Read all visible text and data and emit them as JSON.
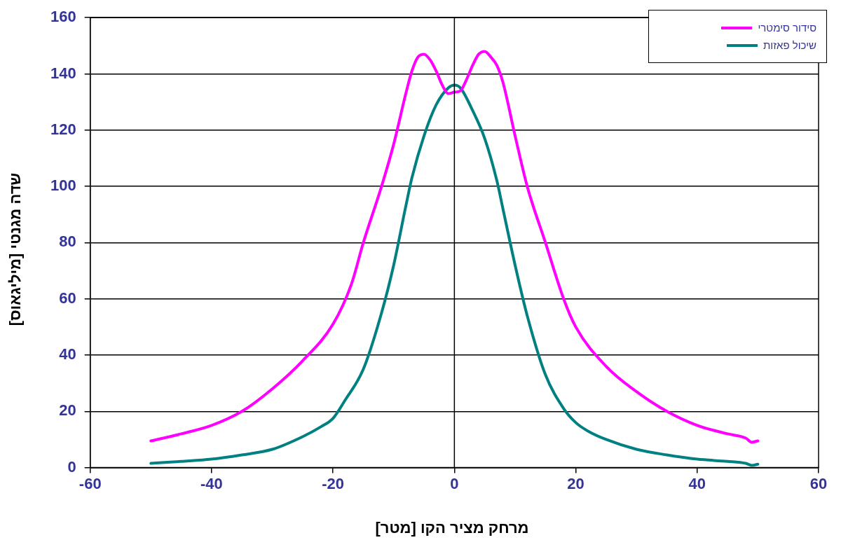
{
  "chart_data": {
    "type": "line",
    "xlabel": "מרחק מציר הקו [מטר]",
    "ylabel": "שדה מגנטי [מיליגאוס]",
    "xlim": [
      -60,
      60
    ],
    "xticks": [
      -60,
      -40,
      -20,
      0,
      20,
      40,
      60
    ],
    "ylim": [
      0,
      160
    ],
    "yticks": [
      0,
      20,
      40,
      60,
      80,
      100,
      120,
      140,
      160
    ],
    "grid": "y",
    "legend": "top right",
    "marker": "none",
    "line_style": "solid",
    "ref_lines": [
      {
        "axis": "x",
        "value": 0,
        "color": "#000000"
      }
    ],
    "series": [
      {
        "name": "סידור סימטרי",
        "color": "#ff00ff",
        "x": [
          -50,
          -45,
          -40,
          -35,
          -30,
          -25,
          -20,
          -17,
          -15,
          -12,
          -10,
          -8,
          -7,
          -6,
          -5,
          -4,
          -3,
          -2,
          -1,
          0,
          1,
          2,
          3,
          4,
          5,
          6,
          7,
          8,
          10,
          12,
          15,
          18,
          20,
          25,
          30,
          35,
          40,
          45,
          48,
          49,
          50
        ],
        "values": [
          9.5,
          12,
          15,
          20,
          28,
          38,
          51,
          65,
          80,
          100,
          115,
          133,
          141,
          146,
          147,
          145,
          141,
          136,
          133,
          133.5,
          134,
          138,
          143,
          147,
          148,
          146,
          143,
          137,
          118,
          100,
          80,
          60,
          50,
          36,
          27,
          20,
          15,
          12,
          10.5,
          9,
          9.5
        ]
      },
      {
        "name": "שיכול פאזות",
        "color": "#008080",
        "x": [
          -50,
          -45,
          -40,
          -35,
          -30,
          -25,
          -22,
          -20,
          -18,
          -15,
          -12,
          -10,
          -8,
          -7,
          -5,
          -3,
          -1,
          0,
          1,
          3,
          5,
          7,
          8,
          10,
          12,
          15,
          18,
          20,
          22,
          25,
          30,
          35,
          40,
          45,
          48,
          49,
          50
        ],
        "values": [
          1.5,
          2.2,
          3,
          4.5,
          6.5,
          11,
          14.5,
          17.5,
          24,
          35,
          55,
          72,
          93,
          103,
          118,
          129,
          135,
          136,
          135,
          127,
          117,
          102,
          92,
          72,
          54,
          33,
          21,
          16,
          13,
          10,
          6.5,
          4.5,
          3,
          2.2,
          1.5,
          0.8,
          1.2
        ]
      }
    ]
  }
}
